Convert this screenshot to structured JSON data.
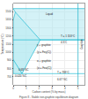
{
  "chart_data": {
    "type": "area",
    "title": "Figure 8 - Stable iron-graphite equilibrium diagram",
    "xlabel": "Carbon content (% by mass)",
    "ylabel": "Temperature (°C)",
    "xlim": [
      0,
      5.5
    ],
    "ylim": [
      600,
      1600
    ],
    "xticks": [
      0,
      1,
      2,
      3,
      4,
      5
    ],
    "yticks": [
      700,
      800,
      900,
      1000,
      1100,
      1200,
      1300,
      1400,
      1500
    ],
    "grid": true,
    "regions": [
      {
        "color": "#b0e8f0",
        "x": [
          0.0,
          5.5,
          5.5,
          2.08,
          0.16,
          0.0
        ],
        "y": [
          1538,
          1538,
          1153,
          1153,
          1495,
          1538
        ]
      },
      {
        "color": "#b0e8f0",
        "x": [
          0.0,
          0.0,
          0.16,
          2.08,
          0.68,
          0.0
        ],
        "y": [
          912,
          1394,
          1495,
          1153,
          738,
          738
        ]
      }
    ],
    "lines": [
      {
        "color": "#00b0cc",
        "x": [
          0.0,
          0.0
        ],
        "y": [
          738,
          912
        ]
      },
      {
        "color": "#00b0cc",
        "x": [
          0.0,
          0.0
        ],
        "y": [
          912,
          1394
        ]
      },
      {
        "color": "#00b0cc",
        "x": [
          0.0,
          0.16
        ],
        "y": [
          1394,
          1495
        ]
      },
      {
        "color": "#00b0cc",
        "x": [
          0.16,
          2.08
        ],
        "y": [
          1495,
          1153
        ]
      },
      {
        "color": "#00b0cc",
        "x": [
          0.0,
          0.16
        ],
        "y": [
          1538,
          1495
        ]
      },
      {
        "color": "#00b0cc",
        "x": [
          2.08,
          5.5
        ],
        "y": [
          1153,
          1153
        ]
      },
      {
        "color": "#00b0cc",
        "x": [
          0.0,
          0.68
        ],
        "y": [
          912,
          738
        ]
      },
      {
        "color": "#00b0cc",
        "x": [
          0.68,
          2.08
        ],
        "y": [
          738,
          1153
        ]
      }
    ],
    "hlines": [
      1153,
      738,
      1538
    ],
    "vlines": [
      5.0
    ],
    "annotations": [
      {
        "text": "Liquid",
        "x": 2.8,
        "y": 1470,
        "align": "center"
      },
      {
        "text": "T = 1 153°C",
        "x": 3.6,
        "y": 1170,
        "align": "left"
      },
      {
        "text": "4.3 C",
        "x": 3.6,
        "y": 1155,
        "align": "left"
      },
      {
        "text": "γ + graphite",
        "x": 2.4,
        "y": 1060,
        "align": "center"
      },
      {
        "text": "(γ = Feγ(C))",
        "x": 2.4,
        "y": 1040,
        "align": "center"
      },
      {
        "text": "T = 738°C",
        "x": 3.3,
        "y": 755,
        "align": "left"
      },
      {
        "text": "α + graphite",
        "x": 2.4,
        "y": 860,
        "align": "center"
      },
      {
        "text": "(α = Feα(C))",
        "x": 2.4,
        "y": 840,
        "align": "center"
      },
      {
        "text": "6.67 %C",
        "x": 3.8,
        "y": 670,
        "align": "center"
      },
      {
        "text": "0.68 %C",
        "x": 0.35,
        "y": 756,
        "align": "left"
      },
      {
        "text": "0.020 %C",
        "x": 0.05,
        "y": 738,
        "align": "left"
      }
    ],
    "side_label": {
      "text": "Graphite",
      "x": 5.28,
      "y": 1100
    }
  }
}
